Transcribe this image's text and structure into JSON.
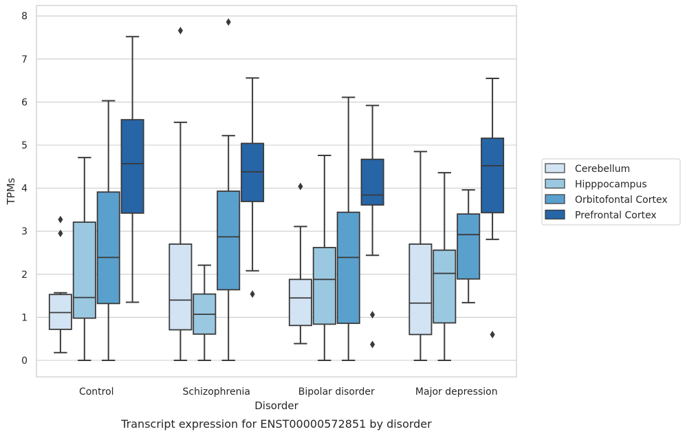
{
  "chart_data": {
    "type": "box",
    "title": "Transcript expression for ENST00000572851 by disorder",
    "xlabel": "Disorder",
    "ylabel": "TPMs",
    "ylim": [
      -0.38,
      8.25
    ],
    "yticks": [
      0,
      1,
      2,
      3,
      4,
      5,
      6,
      7,
      8
    ],
    "grid": "horizontal",
    "legend_position": "right",
    "categories": [
      "Control",
      "Schizophrenia",
      "Bipolar disorder",
      "Major depression"
    ],
    "series": [
      {
        "name": "Cerebellum",
        "color": "#d2e3f3",
        "boxes": [
          {
            "whisker_low": 0.18,
            "q1": 0.72,
            "median": 1.11,
            "q3": 1.53,
            "whisker_high": 1.57,
            "outliers": [
              2.95,
              3.27
            ]
          },
          {
            "whisker_low": 0.0,
            "q1": 0.71,
            "median": 1.4,
            "q3": 2.7,
            "whisker_high": 5.53,
            "outliers": [
              7.66
            ]
          },
          {
            "whisker_low": 0.39,
            "q1": 0.81,
            "median": 1.45,
            "q3": 1.88,
            "whisker_high": 3.11,
            "outliers": [
              4.04
            ]
          },
          {
            "whisker_low": 0.0,
            "q1": 0.6,
            "median": 1.33,
            "q3": 2.7,
            "whisker_high": 4.85,
            "outliers": []
          }
        ]
      },
      {
        "name": "Hipppocampus",
        "color": "#9ac8e0",
        "boxes": [
          {
            "whisker_low": 0.0,
            "q1": 0.98,
            "median": 1.46,
            "q3": 3.21,
            "whisker_high": 4.71,
            "outliers": []
          },
          {
            "whisker_low": 0.0,
            "q1": 0.61,
            "median": 1.07,
            "q3": 1.54,
            "whisker_high": 2.21,
            "outliers": []
          },
          {
            "whisker_low": 0.0,
            "q1": 0.84,
            "median": 1.88,
            "q3": 2.62,
            "whisker_high": 4.76,
            "outliers": []
          },
          {
            "whisker_low": 0.0,
            "q1": 0.87,
            "median": 2.02,
            "q3": 2.56,
            "whisker_high": 4.36,
            "outliers": []
          }
        ]
      },
      {
        "name": "Orbitofontal Cortex",
        "color": "#5aa0cd",
        "boxes": [
          {
            "whisker_low": 0.0,
            "q1": 1.32,
            "median": 2.39,
            "q3": 3.91,
            "whisker_high": 6.03,
            "outliers": []
          },
          {
            "whisker_low": 0.0,
            "q1": 1.64,
            "median": 2.87,
            "q3": 3.93,
            "whisker_high": 5.22,
            "outliers": [
              7.86
            ]
          },
          {
            "whisker_low": 0.0,
            "q1": 0.86,
            "median": 2.39,
            "q3": 3.44,
            "whisker_high": 6.11,
            "outliers": []
          },
          {
            "whisker_low": 1.34,
            "q1": 1.89,
            "median": 2.92,
            "q3": 3.4,
            "whisker_high": 3.96,
            "outliers": []
          }
        ]
      },
      {
        "name": "Prefrontal Cortex",
        "color": "#2665a6",
        "boxes": [
          {
            "whisker_low": 1.35,
            "q1": 3.42,
            "median": 4.57,
            "q3": 5.59,
            "whisker_high": 7.52,
            "outliers": []
          },
          {
            "whisker_low": 2.08,
            "q1": 3.69,
            "median": 4.38,
            "q3": 5.04,
            "whisker_high": 6.56,
            "outliers": [
              1.54
            ]
          },
          {
            "whisker_low": 2.44,
            "q1": 3.61,
            "median": 3.84,
            "q3": 4.67,
            "whisker_high": 5.92,
            "outliers": [
              1.06,
              0.37
            ]
          },
          {
            "whisker_low": 2.81,
            "q1": 3.43,
            "median": 4.52,
            "q3": 5.16,
            "whisker_high": 6.55,
            "outliers": [
              0.6
            ]
          }
        ]
      }
    ]
  }
}
